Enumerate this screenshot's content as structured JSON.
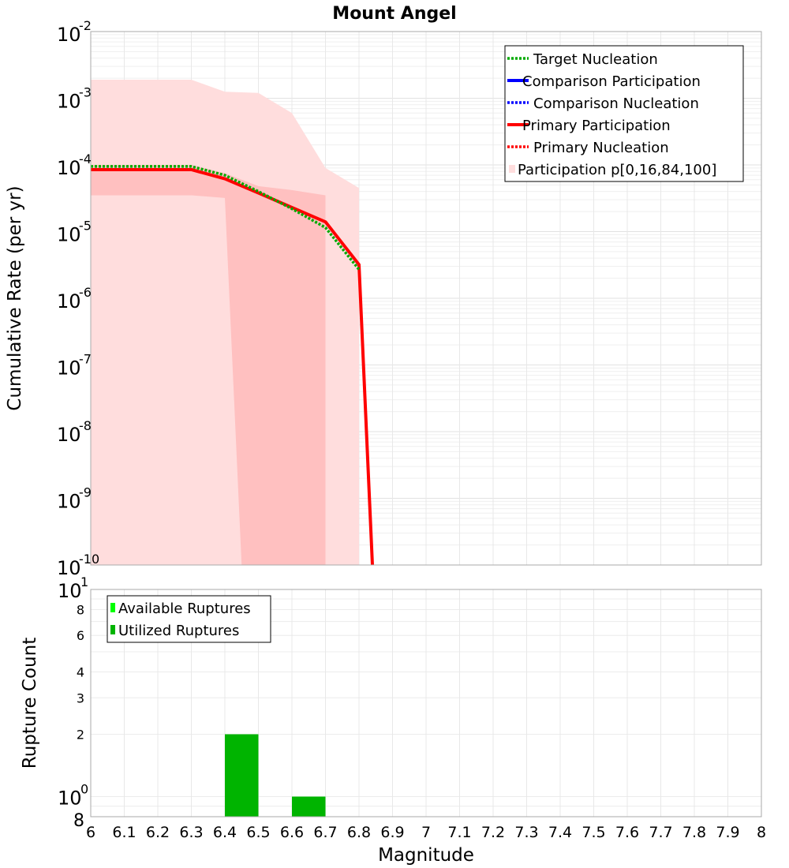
{
  "chart_data": [
    {
      "type": "line",
      "title": "Mount Angel",
      "xlabel": "",
      "ylabel": "Cumulative Rate (per yr)",
      "yscale": "log",
      "xlim": [
        6,
        8
      ],
      "ylim": [
        1e-10,
        0.01
      ],
      "y_tick_labels": [
        {
          "base": "10",
          "exp": "-2"
        },
        {
          "base": "10",
          "exp": "-3"
        },
        {
          "base": "10",
          "exp": "-4"
        },
        {
          "base": "10",
          "exp": "-5"
        },
        {
          "base": "10",
          "exp": "-6"
        },
        {
          "base": "10",
          "exp": "-7"
        },
        {
          "base": "10",
          "exp": "-8"
        },
        {
          "base": "10",
          "exp": "-9"
        },
        {
          "base": "10",
          "exp": "-10"
        }
      ],
      "grid": true,
      "legend_position": "top-right",
      "series": [
        {
          "name": "Target Nucleation",
          "style": "dotted",
          "color": "#00aa00",
          "x": [
            6.0,
            6.3,
            6.4,
            6.5,
            6.6,
            6.7,
            6.8
          ],
          "y": [
            9.5e-05,
            9.5e-05,
            7e-05,
            4e-05,
            2.2e-05,
            1.15e-05,
            2.7e-06
          ]
        },
        {
          "name": "Comparison Participation",
          "style": "solid",
          "color": "#0000ff",
          "x": [],
          "y": []
        },
        {
          "name": "Comparison Nucleation",
          "style": "dotted",
          "color": "#0000ff",
          "x": [],
          "y": []
        },
        {
          "name": "Primary Participation",
          "style": "solid",
          "color": "#ff0000",
          "x": [
            6.0,
            6.3,
            6.4,
            6.5,
            6.6,
            6.7,
            6.8,
            6.84
          ],
          "y": [
            8.5e-05,
            8.5e-05,
            6.2e-05,
            3.8e-05,
            2.3e-05,
            1.4e-05,
            3.2e-06,
            1e-10
          ]
        },
        {
          "name": "Primary Nucleation",
          "style": "dotted",
          "color": "#ff0000",
          "x": [],
          "y": []
        },
        {
          "name": "Participation p[0,16,84,100]",
          "style": "band",
          "color": "#ffdddd",
          "bands": {
            "outer": {
              "color": "#ffdddd",
              "upper": [
                [
                  6.0,
                  0.0019
                ],
                [
                  6.3,
                  0.0019
                ],
                [
                  6.4,
                  0.00125
                ],
                [
                  6.5,
                  0.0012
                ],
                [
                  6.6,
                  0.0006
                ],
                [
                  6.7,
                  9e-05
                ],
                [
                  6.8,
                  4.5e-05
                ],
                [
                  6.8,
                  1e-10
                ]
              ],
              "lower_x_end": 6.0
            },
            "inner": {
              "color": "#ffc0c0",
              "upper": [
                [
                  6.0,
                  0.0001
                ],
                [
                  6.3,
                  0.0001
                ],
                [
                  6.4,
                  7.5e-05
                ],
                [
                  6.5,
                  4.8e-05
                ],
                [
                  6.6,
                  4.2e-05
                ],
                [
                  6.7,
                  3.5e-05
                ],
                [
                  6.7,
                  1e-10
                ]
              ],
              "lower": [
                [
                  6.0,
                  3.5e-05
                ],
                [
                  6.3,
                  3.5e-05
                ],
                [
                  6.4,
                  3.2e-05
                ],
                [
                  6.45,
                  1e-10
                ]
              ]
            }
          }
        }
      ]
    },
    {
      "type": "bar",
      "title": "",
      "xlabel": "Magnitude",
      "ylabel": "Rupture Count",
      "yscale": "log",
      "xlim": [
        6,
        8
      ],
      "ylim": [
        0.8,
        10
      ],
      "x_tick_labels": [
        "6",
        "6.1",
        "6.2",
        "6.3",
        "6.4",
        "6.5",
        "6.6",
        "6.7",
        "6.8",
        "6.9",
        "7",
        "7.1",
        "7.2",
        "7.3",
        "7.4",
        "7.5",
        "7.6",
        "7.7",
        "7.8",
        "7.9",
        "8"
      ],
      "y_major_ticks": [
        {
          "base": "10",
          "exp": "1",
          "value": 10
        },
        {
          "base": "10",
          "exp": "0",
          "value": 1
        }
      ],
      "y_minor_ticks": [
        {
          "label": "8",
          "value": 8
        },
        {
          "label": "6",
          "value": 6
        },
        {
          "label": "4",
          "value": 4
        },
        {
          "label": "3",
          "value": 3
        },
        {
          "label": "2",
          "value": 2
        },
        {
          "label": "8",
          "value": 0.8
        }
      ],
      "grid": true,
      "legend_position": "top-left",
      "series": [
        {
          "name": "Available Ruptures",
          "color": "#00ff00",
          "bins": [
            [
              6.4,
              6.5,
              2
            ],
            [
              6.6,
              6.7,
              1
            ]
          ]
        },
        {
          "name": "Utilized Ruptures",
          "color": "#00b400",
          "bins": [
            [
              6.4,
              6.5,
              2
            ],
            [
              6.6,
              6.7,
              1
            ]
          ]
        }
      ]
    }
  ]
}
